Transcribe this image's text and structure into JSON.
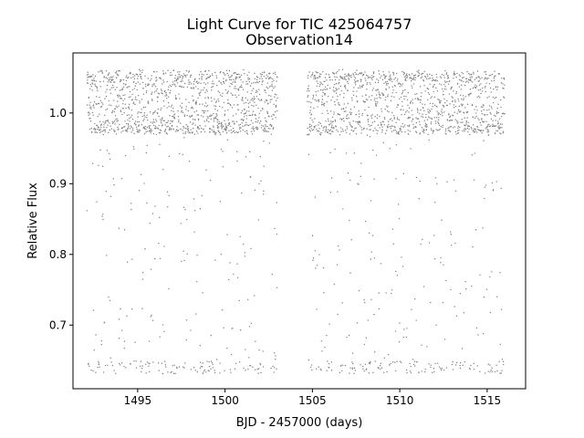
{
  "chart_data": {
    "type": "scatter",
    "title": "Light Curve for TIC 425064757",
    "subtitle": "Observation14",
    "xlabel": "BJD - 2457000 (days)",
    "ylabel": "Relative Flux",
    "xlim": [
      1491.3,
      1517.2
    ],
    "ylim": [
      0.61,
      1.085
    ],
    "xticks": [
      1495,
      1500,
      1505,
      1510,
      1515
    ],
    "yticks": [
      0.7,
      0.8,
      0.9,
      1.0
    ],
    "xtick_labels": [
      "1495",
      "1500",
      "1505",
      "1510",
      "1515"
    ],
    "ytick_labels": [
      "0.7",
      "0.8",
      "0.9",
      "1.0"
    ],
    "grid": false,
    "marker_color": "#808080",
    "series": [
      {
        "segments": [
          {
            "x_start": 1492.1,
            "x_end": 1503.0
          },
          {
            "x_start": 1504.7,
            "x_end": 1516.0
          }
        ],
        "baseline_flux_range": [
          0.97,
          1.06
        ],
        "eclipse_min_flux": 0.64
      }
    ]
  }
}
